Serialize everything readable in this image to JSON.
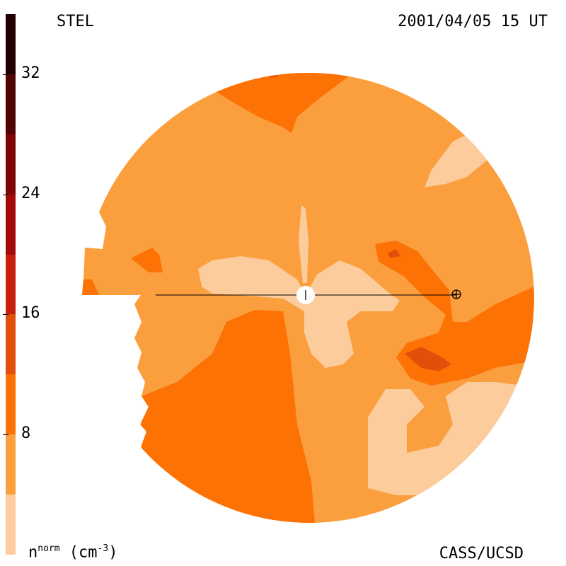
{
  "header": {
    "instrument": "STEL",
    "timestamp": "2001/04/05 15 UT"
  },
  "footer": {
    "credit": "CASS/UCSD",
    "unit_base": "n",
    "unit_sup": "norm",
    "unit_rest": " (cm",
    "unit_exp": "-3",
    "unit_close": ")"
  },
  "colorbar": {
    "levels": [
      0,
      4,
      8,
      12,
      16,
      20,
      24,
      28,
      32,
      36
    ],
    "colors": [
      "#fccc9c",
      "#fb9e3e",
      "#fd7205",
      "#e0500b",
      "#c8200e",
      "#a30b0b",
      "#7e0606",
      "#520303",
      "#200000"
    ],
    "tick_values": [
      8,
      16,
      24,
      32
    ],
    "tick_labels": [
      "8",
      "16",
      "24",
      "32"
    ]
  },
  "map": {
    "colors": {
      "base": "#fb9e3e",
      "low": "#fccc9c",
      "mid": "#fd7205",
      "high": "#e0500b",
      "peak": "#c8200e"
    },
    "sun_marker": "sun-icon",
    "earth_marker": "earth-icon"
  }
}
